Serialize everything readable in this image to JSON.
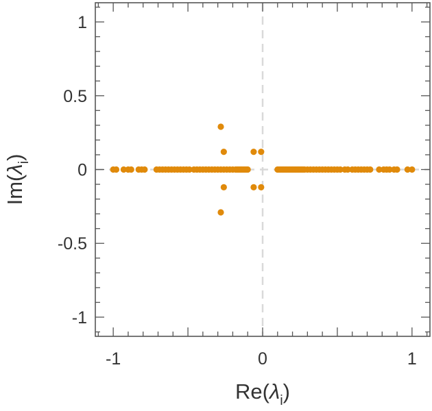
{
  "chart_data": {
    "type": "scatter",
    "title": "",
    "xlabel": {
      "prefix": "Re(",
      "symbol": "λ",
      "subscript": "i",
      "suffix": ")"
    },
    "ylabel": {
      "prefix": "Im(",
      "symbol": "λ",
      "subscript": "i",
      "suffix": ")"
    },
    "xlim": [
      -1.12,
      1.12
    ],
    "ylim": [
      -1.13,
      1.13
    ],
    "x_ticks": [
      {
        "value": -1,
        "label": "-1"
      },
      {
        "value": 0,
        "label": "0"
      },
      {
        "value": 1,
        "label": "1"
      }
    ],
    "y_ticks": [
      {
        "value": 1,
        "label": "1"
      },
      {
        "value": 0.5,
        "label": "0.5"
      },
      {
        "value": 0,
        "label": "0"
      },
      {
        "value": -0.5,
        "label": "-0.5"
      },
      {
        "value": -1,
        "label": "-1"
      }
    ],
    "grid": false,
    "zero_lines": {
      "color": "#d9d9d9",
      "dashed": true
    },
    "colors": {
      "points": "#e08a0b",
      "frame": "#555555",
      "zero_line": "#d9d9d9"
    },
    "series": [
      {
        "name": "eigenvalues",
        "points": [
          [
            -1.0,
            0
          ],
          [
            -0.98,
            0
          ],
          [
            -0.93,
            0
          ],
          [
            -0.9,
            0
          ],
          [
            -0.88,
            0
          ],
          [
            -0.83,
            0
          ],
          [
            -0.81,
            0
          ],
          [
            -0.79,
            0
          ],
          [
            -0.71,
            0
          ],
          [
            -0.69,
            0
          ],
          [
            -0.67,
            0
          ],
          [
            -0.65,
            0
          ],
          [
            -0.63,
            0
          ],
          [
            -0.61,
            0
          ],
          [
            -0.59,
            0
          ],
          [
            -0.57,
            0
          ],
          [
            -0.55,
            0
          ],
          [
            -0.53,
            0
          ],
          [
            -0.51,
            0
          ],
          [
            -0.49,
            0
          ],
          [
            -0.46,
            0
          ],
          [
            -0.44,
            0
          ],
          [
            -0.42,
            0
          ],
          [
            -0.4,
            0
          ],
          [
            -0.38,
            0
          ],
          [
            -0.36,
            0
          ],
          [
            -0.34,
            0
          ],
          [
            -0.32,
            0
          ],
          [
            -0.3,
            0
          ],
          [
            -0.28,
            0
          ],
          [
            -0.26,
            0
          ],
          [
            -0.24,
            0
          ],
          [
            -0.22,
            0
          ],
          [
            -0.2,
            0
          ],
          [
            -0.18,
            0
          ],
          [
            -0.17,
            0
          ],
          [
            -0.16,
            0
          ],
          [
            -0.15,
            0
          ],
          [
            -0.14,
            0
          ],
          [
            -0.13,
            0
          ],
          [
            -0.12,
            0
          ],
          [
            -0.11,
            0
          ],
          [
            -0.1,
            0
          ],
          [
            0.1,
            0
          ],
          [
            0.11,
            0
          ],
          [
            0.12,
            0
          ],
          [
            0.13,
            0
          ],
          [
            0.14,
            0
          ],
          [
            0.15,
            0
          ],
          [
            0.16,
            0
          ],
          [
            0.17,
            0
          ],
          [
            0.18,
            0
          ],
          [
            0.19,
            0
          ],
          [
            0.2,
            0
          ],
          [
            0.21,
            0
          ],
          [
            0.22,
            0
          ],
          [
            0.23,
            0
          ],
          [
            0.24,
            0
          ],
          [
            0.25,
            0
          ],
          [
            0.26,
            0
          ],
          [
            0.27,
            0
          ],
          [
            0.28,
            0
          ],
          [
            0.3,
            0
          ],
          [
            0.32,
            0
          ],
          [
            0.34,
            0
          ],
          [
            0.36,
            0
          ],
          [
            0.38,
            0
          ],
          [
            0.4,
            0
          ],
          [
            0.42,
            0
          ],
          [
            0.44,
            0
          ],
          [
            0.46,
            0
          ],
          [
            0.48,
            0
          ],
          [
            0.5,
            0
          ],
          [
            0.52,
            0
          ],
          [
            0.55,
            0
          ],
          [
            0.57,
            0
          ],
          [
            0.6,
            0
          ],
          [
            0.62,
            0
          ],
          [
            0.64,
            0
          ],
          [
            0.66,
            0
          ],
          [
            0.68,
            0
          ],
          [
            0.7,
            0
          ],
          [
            0.72,
            0
          ],
          [
            0.78,
            0
          ],
          [
            0.81,
            0
          ],
          [
            0.83,
            0
          ],
          [
            0.85,
            0
          ],
          [
            0.88,
            0
          ],
          [
            0.9,
            0
          ],
          [
            0.97,
            0
          ],
          [
            1.0,
            0
          ],
          [
            -0.28,
            0.29
          ],
          [
            -0.28,
            -0.29
          ],
          [
            -0.26,
            0.12
          ],
          [
            -0.26,
            -0.12
          ],
          [
            -0.06,
            0.12
          ],
          [
            -0.06,
            -0.12
          ],
          [
            -0.01,
            0.12
          ],
          [
            -0.01,
            -0.12
          ]
        ]
      }
    ]
  }
}
